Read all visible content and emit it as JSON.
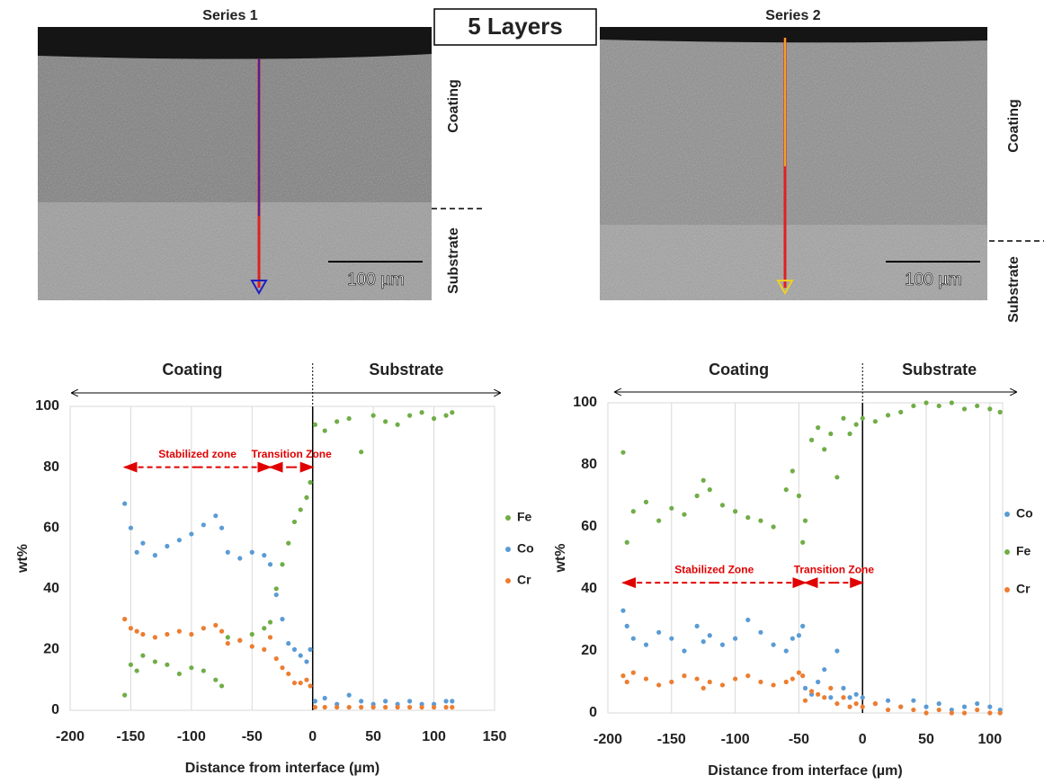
{
  "header": {
    "title": "5 Layers"
  },
  "images": [
    {
      "title": "Series 1",
      "scale_bar": "100 µm",
      "labels": [
        "Coating",
        "Substrate"
      ]
    },
    {
      "title": "Series 2",
      "scale_bar": "100 µm",
      "labels": [
        "Coating",
        "Substrate"
      ]
    }
  ],
  "chart_data": [
    {
      "type": "scatter",
      "xlabel": "Distance from interface (µm)",
      "ylabel": "wt%",
      "region_labels": [
        "Coating",
        "Substrate"
      ],
      "annotations": [
        {
          "text": "Stabilized zone",
          "x": [
            -155,
            -35
          ],
          "y": 80
        },
        {
          "text": "Transition Zone",
          "x": [
            -35,
            0
          ],
          "y": 80
        }
      ],
      "xlim": [
        -200,
        150
      ],
      "xticks": [
        -200,
        -150,
        -100,
        -50,
        0,
        50,
        100,
        150
      ],
      "ylim": [
        0,
        100
      ],
      "yticks": [
        0,
        20,
        40,
        60,
        80,
        100
      ],
      "grid": "x",
      "x": [
        -155,
        -150,
        -145,
        -140,
        -130,
        -120,
        -110,
        -100,
        -90,
        -80,
        -75,
        -70,
        -60,
        -50,
        -40,
        -35,
        -30,
        -25,
        -20,
        -15,
        -10,
        -5,
        -2,
        2,
        10,
        20,
        30,
        40,
        50,
        60,
        70,
        80,
        90,
        100,
        110,
        115
      ],
      "series": [
        {
          "name": "Fe",
          "color": "#70ad47",
          "values": [
            5,
            15,
            13,
            18,
            16,
            15,
            12,
            14,
            13,
            10,
            8,
            24,
            23,
            25,
            27,
            29,
            40,
            48,
            55,
            62,
            66,
            70,
            75,
            94,
            92,
            95,
            96,
            85,
            97,
            95,
            94,
            97,
            98,
            96,
            97,
            98
          ]
        },
        {
          "name": "Co",
          "color": "#5b9bd5",
          "values": [
            68,
            60,
            52,
            55,
            51,
            54,
            56,
            58,
            61,
            64,
            60,
            52,
            50,
            52,
            51,
            48,
            38,
            30,
            22,
            20,
            18,
            16,
            20,
            3,
            4,
            2,
            5,
            3,
            2,
            3,
            2,
            3,
            2,
            2,
            3,
            3
          ]
        },
        {
          "name": "Cr",
          "color": "#ed7d31",
          "values": [
            30,
            27,
            26,
            25,
            24,
            25,
            26,
            25,
            27,
            28,
            26,
            22,
            23,
            21,
            20,
            24,
            17,
            14,
            12,
            9,
            9,
            10,
            8,
            1,
            1,
            1,
            1,
            1,
            1,
            1,
            1,
            1,
            1,
            1,
            1,
            1
          ]
        }
      ]
    },
    {
      "type": "scatter",
      "xlabel": "Distance from interface (µm)",
      "ylabel": "wt%",
      "region_labels": [
        "Coating",
        "Substrate"
      ],
      "annotations": [
        {
          "text": "Stabilized Zone",
          "x": [
            -188,
            -45
          ],
          "y": 42
        },
        {
          "text": "Transition Zone",
          "x": [
            -45,
            0
          ],
          "y": 42
        }
      ],
      "xlim": [
        -200,
        110
      ],
      "xticks": [
        -200,
        -150,
        -100,
        -50,
        0,
        50,
        100
      ],
      "ylim": [
        0,
        100
      ],
      "yticks": [
        0,
        20,
        40,
        60,
        80,
        100
      ],
      "grid": "x",
      "x": [
        -188,
        -185,
        -180,
        -170,
        -160,
        -150,
        -140,
        -130,
        -125,
        -120,
        -110,
        -100,
        -90,
        -80,
        -70,
        -60,
        -55,
        -50,
        -47,
        -45,
        -40,
        -35,
        -30,
        -25,
        -20,
        -15,
        -10,
        -5,
        0,
        10,
        20,
        30,
        40,
        50,
        60,
        70,
        80,
        90,
        100,
        108
      ],
      "series": [
        {
          "name": "Co",
          "color": "#5b9bd5",
          "values": [
            33,
            28,
            24,
            22,
            26,
            24,
            20,
            28,
            23,
            25,
            22,
            24,
            30,
            26,
            22,
            20,
            24,
            25,
            28,
            8,
            6,
            10,
            14,
            5,
            20,
            8,
            5,
            6,
            5,
            3,
            4,
            2,
            4,
            2,
            3,
            1,
            2,
            3,
            2,
            1
          ]
        },
        {
          "name": "Fe",
          "color": "#70ad47",
          "values": [
            84,
            55,
            65,
            68,
            62,
            66,
            64,
            70,
            75,
            72,
            67,
            65,
            63,
            62,
            60,
            72,
            78,
            70,
            55,
            62,
            88,
            92,
            85,
            90,
            76,
            95,
            90,
            93,
            95,
            94,
            96,
            97,
            99,
            100,
            99,
            100,
            98,
            99,
            98,
            97
          ]
        },
        {
          "name": "Cr",
          "color": "#ed7d31",
          "values": [
            12,
            10,
            13,
            11,
            9,
            10,
            12,
            11,
            8,
            10,
            9,
            11,
            12,
            10,
            9,
            10,
            11,
            13,
            12,
            4,
            7,
            6,
            5,
            8,
            3,
            5,
            2,
            3,
            2,
            3,
            1,
            2,
            1,
            0,
            1,
            0,
            0,
            1,
            0,
            0
          ]
        }
      ]
    }
  ]
}
